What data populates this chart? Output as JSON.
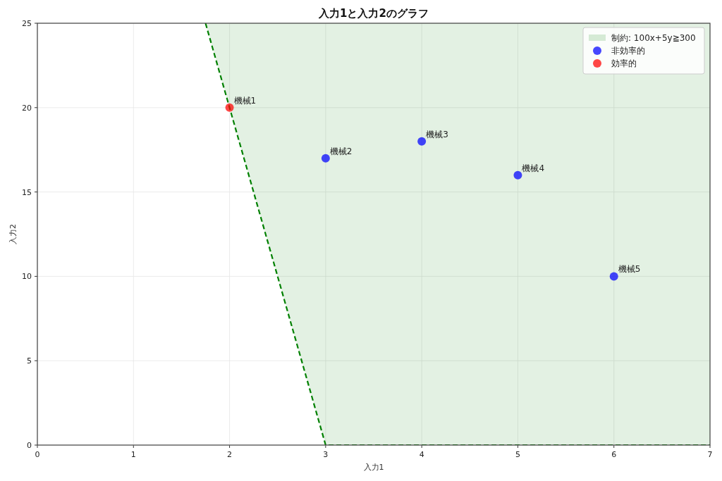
{
  "chart_data": {
    "type": "scatter",
    "title": "入力1と入力2のグラフ",
    "xlabel": "入力1",
    "ylabel": "入力2",
    "xlim": [
      0,
      7
    ],
    "ylim": [
      0,
      25
    ],
    "xticks": [
      0,
      1,
      2,
      3,
      4,
      5,
      6,
      7
    ],
    "yticks": [
      0,
      5,
      10,
      15,
      20,
      25
    ],
    "grid": true,
    "legend": "top right",
    "series": [
      {
        "type": "line",
        "name": "制約: 100x+5y≧300",
        "color": "#008000",
        "line_style": "dashed",
        "marker": "none",
        "x": [
          1.75,
          3,
          7
        ],
        "values": [
          25,
          0,
          0
        ],
        "lower": [
          25,
          0,
          0
        ],
        "upper": [
          25,
          25,
          25
        ]
      },
      {
        "name": "非効率的",
        "color": "#0000ff",
        "marker": "circle",
        "x": [
          3,
          4,
          5,
          6
        ],
        "values": [
          17,
          18,
          16,
          10
        ]
      },
      {
        "name": "効率的",
        "color": "#ff0000",
        "marker": "circle",
        "x": [
          2
        ],
        "values": [
          20
        ]
      }
    ],
    "annotations": [
      {
        "text": "機械1",
        "x": 2,
        "y": 20
      },
      {
        "text": "機械2",
        "x": 3,
        "y": 17
      },
      {
        "text": "機械3",
        "x": 4,
        "y": 18
      },
      {
        "text": "機械4",
        "x": 5,
        "y": 16
      },
      {
        "text": "機械5",
        "x": 6,
        "y": 10
      }
    ]
  }
}
